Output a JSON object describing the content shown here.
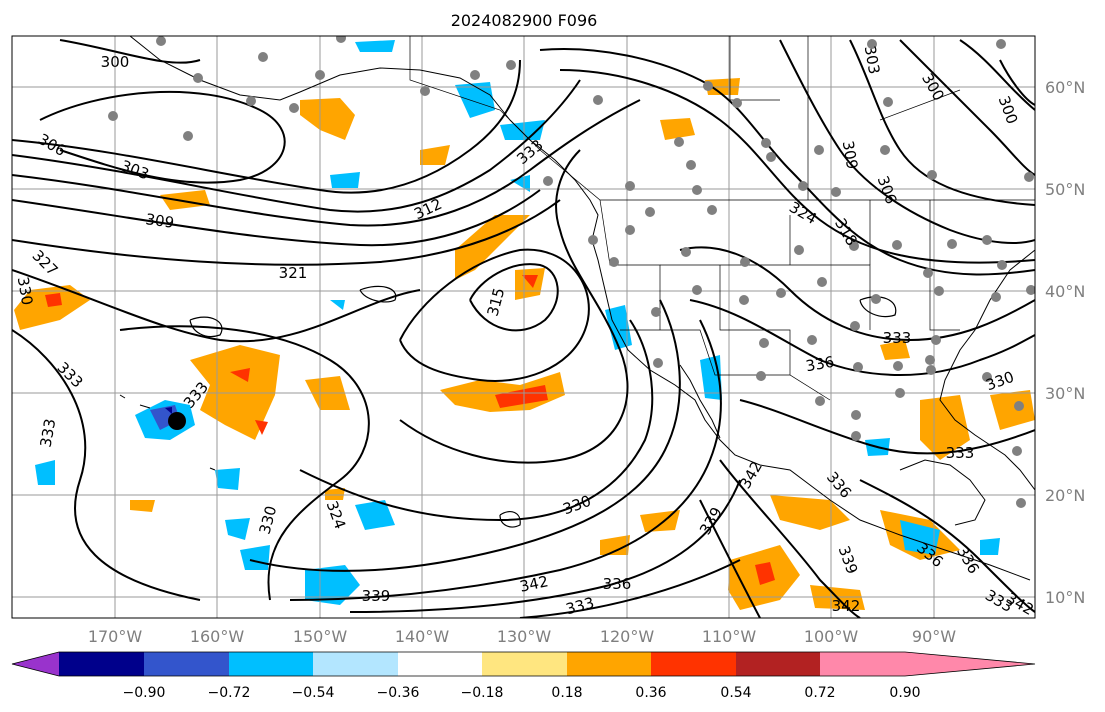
{
  "title": "2024082900 F096",
  "colors": {
    "orange": "#ffa500",
    "red": "#ff3300",
    "light_yellow": "#ffe680",
    "sky_blue": "#00bfff",
    "light_blue": "#b3e6ff",
    "medium_blue": "#3355cc",
    "navy": "#00008b",
    "purple": "#9933cc",
    "dark_red": "#b22222",
    "pink": "#ff88aa",
    "station_dot": "#808080",
    "gridline": "#9a9a9a"
  },
  "map": {
    "projection": "PlateCarree",
    "lon_range": [
      -180,
      -80
    ],
    "lat_range": [
      8,
      65
    ],
    "lon_ticks": [
      "170°W",
      "160°W",
      "150°W",
      "140°W",
      "130°W",
      "120°W",
      "110°W",
      "100°W",
      "90°W"
    ],
    "lat_ticks": [
      "10°N",
      "20°N",
      "30°N",
      "40°N",
      "50°N",
      "60°N"
    ]
  },
  "contour_labels": [
    "300",
    "306",
    "303",
    "309",
    "312",
    "321",
    "327",
    "330",
    "333",
    "333",
    "333",
    "330",
    "330",
    "324",
    "339",
    "342",
    "333",
    "336",
    "339",
    "342",
    "339",
    "342",
    "336",
    "333",
    "303",
    "306",
    "309",
    "300",
    "300",
    "324",
    "318",
    "315",
    "333",
    "336",
    "330",
    "333",
    "336",
    "333",
    "336",
    "342"
  ],
  "colorbar": {
    "ticks": [
      "−0.90",
      "−0.72",
      "−0.54",
      "−0.36",
      "−0.18",
      "0.18",
      "0.36",
      "0.54",
      "0.72",
      "0.90"
    ],
    "colors": [
      "#9933cc",
      "#00008b",
      "#3355cc",
      "#00bfff",
      "#b3e6ff",
      "#ffffff",
      "#ffe680",
      "#ffa500",
      "#ff3300",
      "#b22222",
      "#ff88aa"
    ],
    "extend": "both"
  }
}
